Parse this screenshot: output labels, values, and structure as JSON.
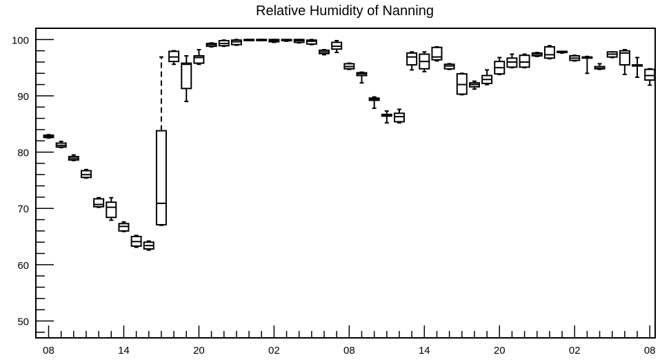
{
  "chart_data": {
    "type": "box",
    "title": "Relative Humidity of Nanning",
    "xlabel": "",
    "ylabel": "",
    "ylim": [
      47,
      102
    ],
    "yticks": [
      50,
      60,
      70,
      80,
      90,
      100
    ],
    "x_tick_labels": [
      "08",
      "14",
      "20",
      "02",
      "08",
      "14",
      "20",
      "02",
      "08"
    ],
    "grid": false,
    "legend": "none",
    "boxes": [
      {
        "min": 82.5,
        "q1": 82.6,
        "median": 82.8,
        "q3": 83.0,
        "max": 83.1
      },
      {
        "min": 80.8,
        "q1": 80.9,
        "median": 81.2,
        "q3": 81.6,
        "max": 81.9
      },
      {
        "min": 78.5,
        "q1": 78.6,
        "median": 78.9,
        "q3": 79.2,
        "max": 79.5
      },
      {
        "min": 75.4,
        "q1": 75.5,
        "median": 76.0,
        "q3": 76.7,
        "max": 76.9
      },
      {
        "min": 70.2,
        "q1": 70.3,
        "median": 70.7,
        "q3": 71.7,
        "max": 71.9
      },
      {
        "min": 67.9,
        "q1": 68.4,
        "median": 70.2,
        "q3": 71.1,
        "max": 71.9
      },
      {
        "min": 65.9,
        "q1": 66.0,
        "median": 66.8,
        "q3": 67.3,
        "max": 67.6
      },
      {
        "min": 63.1,
        "q1": 63.3,
        "median": 64.1,
        "q3": 65.0,
        "max": 65.2
      },
      {
        "min": 62.6,
        "q1": 62.8,
        "median": 63.4,
        "q3": 64.0,
        "max": 64.2
      },
      {
        "min": 67.0,
        "q1": 67.1,
        "median": 70.9,
        "q3": 83.8,
        "max": 96.9,
        "dashed": true
      },
      {
        "min": 95.6,
        "q1": 96.1,
        "median": 96.9,
        "q3": 97.9,
        "max": 98.0
      },
      {
        "min": 89.0,
        "q1": 91.3,
        "median": 95.6,
        "q3": 95.8,
        "max": 97.1
      },
      {
        "min": 95.6,
        "q1": 95.8,
        "median": 96.8,
        "q3": 97.1,
        "max": 98.2
      },
      {
        "min": 98.7,
        "q1": 98.8,
        "median": 99.1,
        "q3": 99.3,
        "max": 99.4
      },
      {
        "min": 98.8,
        "q1": 98.9,
        "median": 99.3,
        "q3": 99.8,
        "max": 99.9
      },
      {
        "min": 99.0,
        "q1": 99.1,
        "median": 99.6,
        "q3": 99.9,
        "max": 100.0
      },
      {
        "min": 99.9,
        "q1": 99.9,
        "median": 100.0,
        "q3": 100.0,
        "max": 100.0
      },
      {
        "min": 99.9,
        "q1": 99.9,
        "median": 100.0,
        "q3": 100.0,
        "max": 100.0
      },
      {
        "min": 99.5,
        "q1": 99.6,
        "median": 99.8,
        "q3": 100.0,
        "max": 100.0
      },
      {
        "min": 99.7,
        "q1": 99.8,
        "median": 99.9,
        "q3": 100.0,
        "max": 100.0
      },
      {
        "min": 99.4,
        "q1": 99.5,
        "median": 99.8,
        "q3": 100.0,
        "max": 100.0
      },
      {
        "min": 99.1,
        "q1": 99.2,
        "median": 99.7,
        "q3": 99.9,
        "max": 100.0
      },
      {
        "min": 97.3,
        "q1": 97.5,
        "median": 97.8,
        "q3": 98.1,
        "max": 98.2
      },
      {
        "min": 97.7,
        "q1": 98.3,
        "median": 98.8,
        "q3": 99.5,
        "max": 99.8
      },
      {
        "min": 94.7,
        "q1": 94.8,
        "median": 95.2,
        "q3": 95.7,
        "max": 95.8
      },
      {
        "min": 92.3,
        "q1": 93.6,
        "median": 93.9,
        "q3": 94.1,
        "max": 94.2
      },
      {
        "min": 87.8,
        "q1": 89.2,
        "median": 89.4,
        "q3": 89.6,
        "max": 89.8
      },
      {
        "min": 85.2,
        "q1": 86.4,
        "median": 86.5,
        "q3": 86.7,
        "max": 87.3
      },
      {
        "min": 85.2,
        "q1": 85.4,
        "median": 86.3,
        "q3": 86.9,
        "max": 87.6
      },
      {
        "min": 94.6,
        "q1": 95.5,
        "median": 96.9,
        "q3": 97.6,
        "max": 97.8
      },
      {
        "min": 94.3,
        "q1": 94.8,
        "median": 96.1,
        "q3": 97.4,
        "max": 97.8
      },
      {
        "min": 96.2,
        "q1": 96.4,
        "median": 96.9,
        "q3": 98.6,
        "max": 98.7
      },
      {
        "min": 94.7,
        "q1": 94.8,
        "median": 95.3,
        "q3": 95.6,
        "max": 95.7
      },
      {
        "min": 90.2,
        "q1": 90.3,
        "median": 92.0,
        "q3": 93.9,
        "max": 94.0
      },
      {
        "min": 91.2,
        "q1": 91.6,
        "median": 92.0,
        "q3": 92.3,
        "max": 92.6
      },
      {
        "min": 92.0,
        "q1": 92.2,
        "median": 92.9,
        "q3": 93.6,
        "max": 94.6
      },
      {
        "min": 93.8,
        "q1": 93.9,
        "median": 95.0,
        "q3": 96.1,
        "max": 96.8
      },
      {
        "min": 95.0,
        "q1": 95.1,
        "median": 96.0,
        "q3": 96.7,
        "max": 97.4
      },
      {
        "min": 95.0,
        "q1": 95.1,
        "median": 96.0,
        "q3": 97.2,
        "max": 97.4
      },
      {
        "min": 97.0,
        "q1": 97.1,
        "median": 97.4,
        "q3": 97.6,
        "max": 97.7
      },
      {
        "min": 96.6,
        "q1": 96.7,
        "median": 97.3,
        "q3": 98.7,
        "max": 98.9
      },
      {
        "min": 97.6,
        "q1": 97.7,
        "median": 97.8,
        "q3": 97.9,
        "max": 97.9
      },
      {
        "min": 96.2,
        "q1": 96.3,
        "median": 96.7,
        "q3": 97.1,
        "max": 97.2
      },
      {
        "min": 94.0,
        "q1": 96.7,
        "median": 96.8,
        "q3": 96.9,
        "max": 97.0
      },
      {
        "min": 94.7,
        "q1": 94.8,
        "median": 94.9,
        "q3": 95.2,
        "max": 95.7
      },
      {
        "min": 96.8,
        "q1": 96.9,
        "median": 97.4,
        "q3": 97.8,
        "max": 97.8
      },
      {
        "min": 93.8,
        "q1": 95.5,
        "median": 97.6,
        "q3": 98.0,
        "max": 98.2
      },
      {
        "min": 93.3,
        "q1": 95.3,
        "median": 95.4,
        "q3": 95.5,
        "max": 96.8
      },
      {
        "min": 91.9,
        "q1": 92.8,
        "median": 93.6,
        "q3": 94.7,
        "max": 94.8
      }
    ]
  }
}
